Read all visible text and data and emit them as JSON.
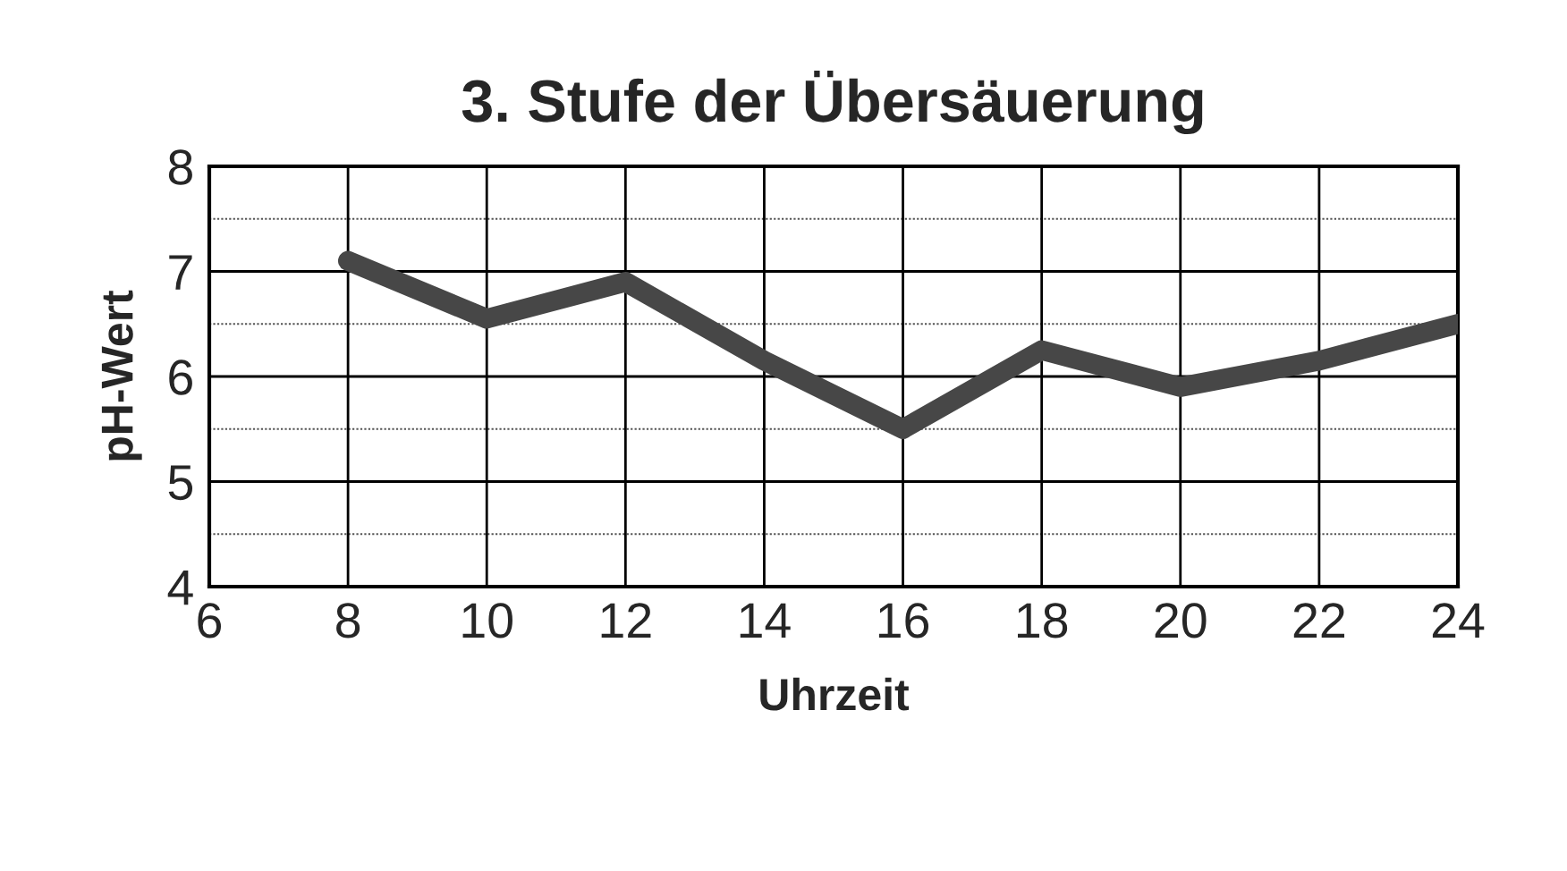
{
  "chart_data": {
    "type": "line",
    "title": "3. Stufe der Übersäuerung",
    "xlabel": "Uhrzeit",
    "ylabel": "pH-Wert",
    "x": [
      8,
      10,
      12,
      14,
      16,
      18,
      20,
      22,
      24
    ],
    "series": [
      {
        "color": "#474747",
        "values": [
          7.1,
          6.55,
          6.9,
          6.15,
          5.5,
          6.25,
          5.9,
          6.15,
          6.5
        ]
      }
    ],
    "xlim": [
      6,
      24
    ],
    "xticks": [
      6,
      8,
      10,
      12,
      14,
      16,
      18,
      20,
      22,
      24
    ],
    "ylim": [
      4,
      8
    ],
    "yticks": [
      4,
      5,
      6,
      7,
      8
    ],
    "grid": true,
    "marker": "none",
    "line_style": "solid"
  }
}
